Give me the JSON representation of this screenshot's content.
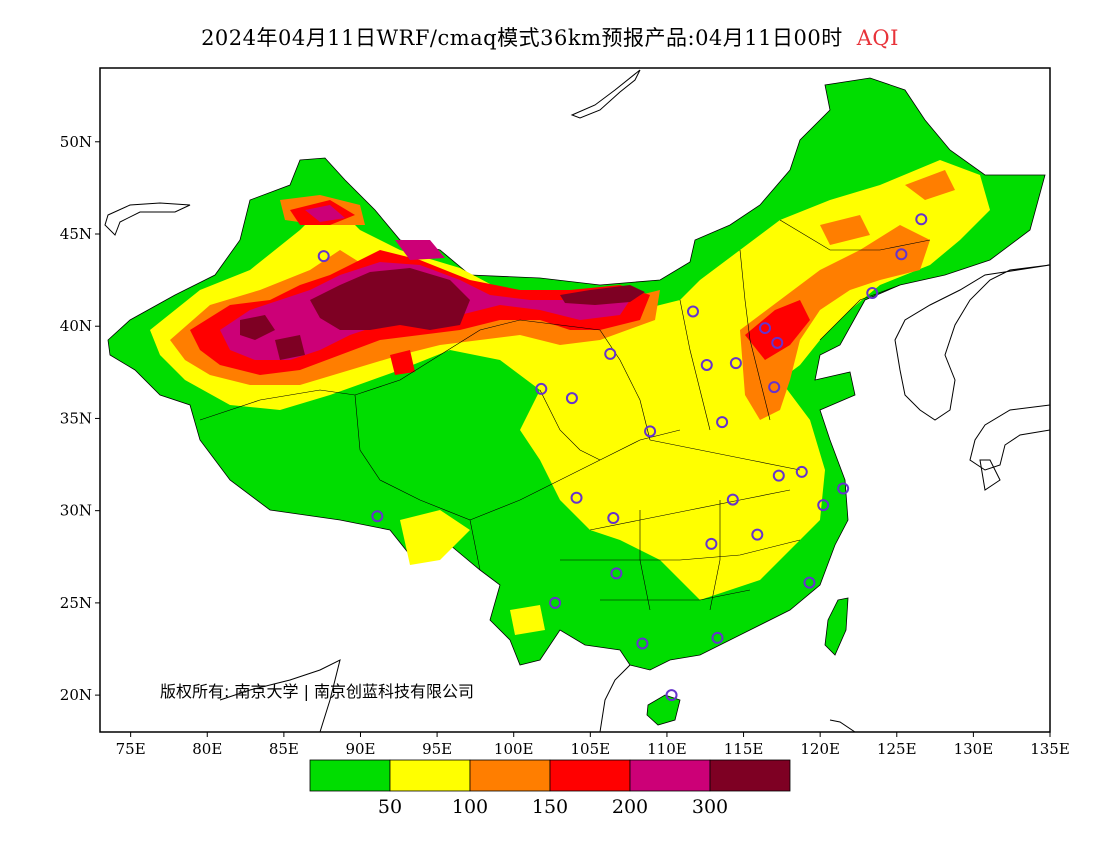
{
  "title": {
    "text": "2024年04月11日WRF/cmaq模式36km预报产品:04月11日00时",
    "variable": "AQI"
  },
  "map": {
    "lon_range": [
      73,
      135
    ],
    "lat_range": [
      18,
      54
    ],
    "lon_ticks": [
      "75E",
      "80E",
      "85E",
      "90E",
      "95E",
      "100E",
      "105E",
      "110E",
      "115E",
      "120E",
      "125E",
      "130E",
      "135E"
    ],
    "lat_ticks": [
      "20N",
      "25N",
      "30N",
      "35N",
      "40N",
      "45N",
      "50N"
    ],
    "copyright": "版权所有: 南京大学 | 南京创蓝科技有限公司"
  },
  "legend": {
    "colors": [
      "#00dd00",
      "#ffff00",
      "#ff7e00",
      "#ff0000",
      "#cc0077",
      "#7e0023"
    ],
    "labels": [
      "50",
      "100",
      "150",
      "200",
      "300"
    ]
  },
  "stations": [
    [
      87.6,
      43.8
    ],
    [
      91.1,
      29.7
    ],
    [
      101.8,
      36.6
    ],
    [
      103.8,
      36.1
    ],
    [
      106.3,
      38.5
    ],
    [
      111.7,
      40.8
    ],
    [
      112.6,
      37.9
    ],
    [
      114.5,
      38.0
    ],
    [
      116.4,
      39.9
    ],
    [
      117.2,
      39.1
    ],
    [
      117.0,
      36.7
    ],
    [
      113.6,
      34.8
    ],
    [
      108.9,
      34.3
    ],
    [
      104.1,
      30.7
    ],
    [
      106.5,
      29.6
    ],
    [
      114.3,
      30.6
    ],
    [
      117.3,
      31.9
    ],
    [
      118.8,
      32.1
    ],
    [
      120.2,
      30.3
    ],
    [
      121.5,
      31.2
    ],
    [
      112.9,
      28.2
    ],
    [
      115.9,
      28.7
    ],
    [
      119.3,
      26.1
    ],
    [
      106.7,
      26.6
    ],
    [
      102.7,
      25.0
    ],
    [
      108.4,
      22.8
    ],
    [
      113.3,
      23.1
    ],
    [
      110.3,
      20.0
    ],
    [
      123.4,
      41.8
    ],
    [
      125.3,
      43.9
    ],
    [
      126.6,
      45.8
    ]
  ]
}
